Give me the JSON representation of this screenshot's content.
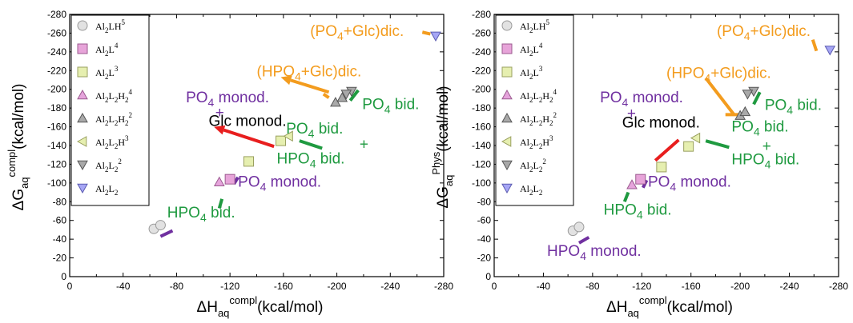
{
  "chart_data": [
    {
      "type": "scatter",
      "x_axis": {
        "label_main": "ΔH",
        "label_sub": "aq",
        "label_sup": "compl",
        "label_unit": "(kcal/mol)",
        "lim": [
          0,
          -280
        ],
        "ticks": [
          0,
          -40,
          -80,
          -120,
          -160,
          -200,
          -240,
          -280
        ]
      },
      "y_axis": {
        "label_main": "ΔG",
        "label_sub": "aq",
        "label_sup": "compl",
        "label_unit": "(kcal/mol)",
        "lim": [
          0,
          -280
        ],
        "ticks": [
          0,
          -20,
          -40,
          -60,
          -80,
          -100,
          -120,
          -140,
          -160,
          -180,
          -200,
          -220,
          -240,
          -260,
          -280
        ]
      },
      "legend_position": "top-left",
      "series": [
        {
          "key": "s1",
          "marker": "circle",
          "color": "#e2e2e2",
          "stroke": "#9a9a9a",
          "points": [
            [
              -63,
              -51
            ],
            [
              -68,
              -55
            ]
          ]
        },
        {
          "key": "s2",
          "marker": "square",
          "color": "#e7a4d9",
          "stroke": "#9b5a8f",
          "points": [
            [
              -120,
              -104
            ]
          ]
        },
        {
          "key": "s3",
          "marker": "square",
          "color": "#e6efb0",
          "stroke": "#9aa060",
          "points": [
            [
              -134,
              -123
            ],
            [
              -158,
              -145
            ]
          ]
        },
        {
          "key": "s4",
          "marker": "triangle-up",
          "color": "#e6a4dc",
          "stroke": "#9b5a8f",
          "points": [
            [
              -112,
              -101
            ]
          ]
        },
        {
          "key": "s5",
          "marker": "triangle-up",
          "color": "#a9a9a9",
          "stroke": "#555555",
          "points": [
            [
              -199,
              -186
            ],
            [
              -204,
              -191
            ]
          ]
        },
        {
          "key": "s6",
          "marker": "triangle-left",
          "color": "#e6efb0",
          "stroke": "#9aa060",
          "points": [
            [
              -164,
              -150
            ]
          ]
        },
        {
          "key": "s7",
          "marker": "triangle-down",
          "color": "#a9a9a9",
          "stroke": "#555555",
          "points": [
            [
              -211,
              -198
            ],
            [
              -207,
              -195
            ]
          ]
        },
        {
          "key": "s8",
          "marker": "triangle-down",
          "color": "#a6a6f5",
          "stroke": "#5a5ab0",
          "points": [
            [
              -274,
              -257
            ]
          ]
        }
      ],
      "annotations": [
        {
          "key": "a1",
          "text": "(PO",
          "sub": "4",
          "rest": "+Glc)dic.",
          "color": "#f39c1e",
          "x": -180,
          "y": -257
        },
        {
          "key": "a2",
          "text": "(HPO",
          "sub": "4",
          "rest": "+Glc)dic.",
          "color": "#f39c1e",
          "x": -140,
          "y": -214
        },
        {
          "key": "a3",
          "text": "PO",
          "sub": "4",
          "rest": " monod.",
          "color": "#7030a0",
          "x": -87,
          "y": -186
        },
        {
          "key": "a4",
          "text": "+",
          "sub": "",
          "rest": "",
          "color": "#7030a0",
          "x": -109,
          "y": -170
        },
        {
          "key": "a5",
          "text": "Glc monod.",
          "sub": "",
          "rest": "",
          "color": "#000000",
          "x": -104,
          "y": -161
        },
        {
          "key": "a6",
          "text": "PO",
          "sub": "4",
          "rest": " bid.",
          "color": "#1f9a40",
          "x": -219,
          "y": -179
        },
        {
          "key": "a7",
          "text": "PO",
          "sub": "4",
          "rest": " bid.",
          "color": "#1f9a40",
          "x": -162,
          "y": -153
        },
        {
          "key": "a8",
          "text": "+",
          "sub": "",
          "rest": "",
          "color": "#1f9a40",
          "x": -217,
          "y": -136
        },
        {
          "key": "a9",
          "text": "HPO",
          "sub": "4",
          "rest": " bid.",
          "color": "#1f9a40",
          "x": -155,
          "y": -121
        },
        {
          "key": "a10",
          "text": "PO",
          "sub": "4",
          "rest": " monod.",
          "color": "#7030a0",
          "x": -126,
          "y": -96
        },
        {
          "key": "a11",
          "text": "HPO",
          "sub": "4",
          "rest": " bid.",
          "color": "#1f9a40",
          "x": -73,
          "y": -63
        }
      ],
      "segments": [
        {
          "color": "#7030a0",
          "from": [
            -68,
            -43
          ],
          "to": [
            -77,
            -49
          ]
        },
        {
          "color": "#1f9a40",
          "from": [
            -112,
            -73
          ],
          "to": [
            -114,
            -83
          ]
        },
        {
          "color": "#7030a0",
          "from": [
            -123,
            -99
          ],
          "to": [
            -126,
            -106
          ]
        },
        {
          "color": "#1f9a40",
          "from": [
            -172,
            -145
          ],
          "to": [
            -189,
            -137
          ]
        },
        {
          "color": "#1f9a40",
          "from": [
            -210,
            -188
          ],
          "to": [
            -216,
            -199
          ]
        },
        {
          "color": "#f39c1e",
          "from": [
            -264,
            -261
          ],
          "to": [
            -270,
            -259
          ]
        },
        {
          "color": "#f39c1e",
          "from": [
            -194,
            -191
          ],
          "to": [
            -190,
            -195
          ]
        }
      ],
      "arrows": [
        {
          "color": "#e81e1e",
          "from": [
            -153,
            -139
          ],
          "to": [
            -108,
            -160
          ]
        },
        {
          "color": "#f39c1e",
          "from": [
            -194,
            -197
          ],
          "to": [
            -158,
            -213
          ]
        }
      ]
    },
    {
      "type": "scatter",
      "x_axis": {
        "label_main": "ΔH",
        "label_sub": "aq",
        "label_sup": "compl",
        "label_unit": "(kcal/mol)",
        "lim": [
          0,
          -280
        ],
        "ticks": [
          0,
          -40,
          -80,
          -120,
          -160,
          -200,
          -240,
          -280
        ]
      },
      "y_axis": {
        "label_main": "ΔG",
        "label_sub": "aq",
        "label_sup": "Phys",
        "label_unit": "(kcal/mol)",
        "lim": [
          0,
          -280
        ],
        "ticks": [
          0,
          -20,
          -40,
          -60,
          -80,
          -100,
          -120,
          -140,
          -160,
          -180,
          -200,
          -220,
          -240,
          -260,
          -280
        ]
      },
      "legend_position": "top-left",
      "series": [
        {
          "key": "s1",
          "marker": "circle",
          "color": "#e2e2e2",
          "stroke": "#9a9a9a",
          "points": [
            [
              -64,
              -49
            ],
            [
              -69,
              -53
            ]
          ]
        },
        {
          "key": "s2",
          "marker": "square",
          "color": "#e7a4d9",
          "stroke": "#9b5a8f",
          "points": [
            [
              -119,
              -104
            ]
          ]
        },
        {
          "key": "s3",
          "marker": "square",
          "color": "#e6efb0",
          "stroke": "#9aa060",
          "points": [
            [
              -136,
              -117
            ],
            [
              -158,
              -139
            ]
          ]
        },
        {
          "key": "s4",
          "marker": "triangle-up",
          "color": "#e6a4dc",
          "stroke": "#9b5a8f",
          "points": [
            [
              -112,
              -98
            ]
          ]
        },
        {
          "key": "s5",
          "marker": "triangle-up",
          "color": "#a9a9a9",
          "stroke": "#555555",
          "points": [
            [
              -200,
              -172
            ],
            [
              -204,
              -176
            ]
          ]
        },
        {
          "key": "s6",
          "marker": "triangle-left",
          "color": "#e6efb0",
          "stroke": "#9aa060",
          "points": [
            [
              -164,
              -148
            ]
          ]
        },
        {
          "key": "s7",
          "marker": "triangle-down",
          "color": "#a9a9a9",
          "stroke": "#555555",
          "points": [
            [
              -211,
              -198
            ],
            [
              -206,
              -195
            ]
          ]
        },
        {
          "key": "s8",
          "marker": "triangle-down",
          "color": "#a6a6f5",
          "stroke": "#5a5ab0",
          "points": [
            [
              -273,
              -242
            ]
          ]
        }
      ],
      "annotations": [
        {
          "key": "a1",
          "text": "(PO",
          "sub": "4",
          "rest": "+Glc)dic.",
          "color": "#f39c1e",
          "x": -181,
          "y": -257
        },
        {
          "key": "a2",
          "text": "(HPO",
          "sub": "4",
          "rest": "+Glc)dic.",
          "color": "#f39c1e",
          "x": -140,
          "y": -212
        },
        {
          "key": "a3",
          "text": "PO",
          "sub": "4",
          "rest": " monod.",
          "color": "#7030a0",
          "x": -86,
          "y": -186
        },
        {
          "key": "a4",
          "text": "+",
          "sub": "",
          "rest": "",
          "color": "#7030a0",
          "x": -108,
          "y": -169
        },
        {
          "key": "a5",
          "text": "Glc monod.",
          "sub": "",
          "rest": "",
          "color": "#000000",
          "x": -104,
          "y": -159
        },
        {
          "key": "a6",
          "text": "PO",
          "sub": "4",
          "rest": " bid.",
          "color": "#1f9a40",
          "x": -220,
          "y": -178
        },
        {
          "key": "a7",
          "text": "PO",
          "sub": "4",
          "rest": " bid.",
          "color": "#1f9a40",
          "x": -193,
          "y": -155
        },
        {
          "key": "a8",
          "text": "+",
          "sub": "",
          "rest": "",
          "color": "#1f9a40",
          "x": -218,
          "y": -134
        },
        {
          "key": "a9",
          "text": "HPO",
          "sub": "4",
          "rest": " bid.",
          "color": "#1f9a40",
          "x": -193,
          "y": -120
        },
        {
          "key": "a10",
          "text": "PO",
          "sub": "4",
          "rest": " monod.",
          "color": "#7030a0",
          "x": -125,
          "y": -96
        },
        {
          "key": "a11",
          "text": "HPO",
          "sub": "4",
          "rest": " bid.",
          "color": "#1f9a40",
          "x": -89,
          "y": -66
        },
        {
          "key": "a12",
          "text": "HPO",
          "sub": "4",
          "rest": " monod.",
          "color": "#7030a0",
          "x": -43,
          "y": -22
        }
      ],
      "segments": [
        {
          "color": "#7030a0",
          "from": [
            -69,
            -36
          ],
          "to": [
            -77,
            -42
          ]
        },
        {
          "color": "#1f9a40",
          "from": [
            -106,
            -80
          ],
          "to": [
            -109,
            -90
          ]
        },
        {
          "color": "#7030a0",
          "from": [
            -121,
            -95
          ],
          "to": [
            -124,
            -103
          ]
        },
        {
          "color": "#e81e1e",
          "from": [
            -131,
            -124
          ],
          "to": [
            -150,
            -146
          ]
        },
        {
          "color": "#1f9a40",
          "from": [
            -172,
            -145
          ],
          "to": [
            -191,
            -138
          ]
        },
        {
          "color": "#1f9a40",
          "from": [
            -211,
            -184
          ],
          "to": [
            -216,
            -197
          ]
        },
        {
          "color": "#f39c1e",
          "from": [
            -259,
            -253
          ],
          "to": [
            -262,
            -241
          ]
        },
        {
          "color": "#f39c1e",
          "from": [
            -172,
            -212
          ],
          "to": [
            -195,
            -173
          ]
        },
        {
          "color": "#f39c1e",
          "from": [
            -188,
            -173
          ],
          "to": [
            -200,
            -173
          ]
        }
      ],
      "arrows": []
    }
  ],
  "legend": [
    {
      "key": "s1",
      "base": "Al",
      "parts": [
        [
          "sub",
          "2"
        ],
        [
          "n",
          "LH"
        ],
        [
          "sup",
          "5"
        ]
      ]
    },
    {
      "key": "s2",
      "base": "Al",
      "parts": [
        [
          "sub",
          "2"
        ],
        [
          "n",
          "L"
        ],
        [
          "sup",
          "4"
        ]
      ]
    },
    {
      "key": "s3",
      "base": "Al",
      "parts": [
        [
          "sub",
          "2"
        ],
        [
          "n",
          "L"
        ],
        [
          "sup",
          "3"
        ]
      ]
    },
    {
      "key": "s4",
      "base": "Al",
      "parts": [
        [
          "sub",
          "2"
        ],
        [
          "n",
          "L"
        ],
        [
          "sub",
          "2"
        ],
        [
          "n",
          "H"
        ],
        [
          "sub",
          "2"
        ],
        [
          "sup",
          "4"
        ]
      ]
    },
    {
      "key": "s5",
      "base": "Al",
      "parts": [
        [
          "sub",
          "2"
        ],
        [
          "n",
          "L"
        ],
        [
          "sub",
          "2"
        ],
        [
          "n",
          "H"
        ],
        [
          "sub",
          "2"
        ],
        [
          "sup",
          "2"
        ]
      ]
    },
    {
      "key": "s6",
      "base": "Al",
      "parts": [
        [
          "sub",
          "2"
        ],
        [
          "n",
          "L"
        ],
        [
          "sub",
          "2"
        ],
        [
          "n",
          "H"
        ],
        [
          "sup",
          "3"
        ]
      ]
    },
    {
      "key": "s7",
      "base": "Al",
      "parts": [
        [
          "sub",
          "2"
        ],
        [
          "n",
          "L"
        ],
        [
          "sub",
          "2"
        ],
        [
          "sup",
          "2"
        ]
      ]
    },
    {
      "key": "s8",
      "base": "Al",
      "parts": [
        [
          "sub",
          "2"
        ],
        [
          "n",
          "L"
        ],
        [
          "sub",
          "2"
        ]
      ]
    }
  ]
}
